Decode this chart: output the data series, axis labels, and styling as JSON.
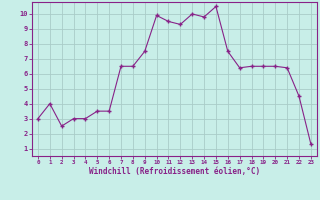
{
  "x": [
    0,
    1,
    2,
    3,
    4,
    5,
    6,
    7,
    8,
    9,
    10,
    11,
    12,
    13,
    14,
    15,
    16,
    17,
    18,
    19,
    20,
    21,
    22,
    23
  ],
  "y": [
    3,
    4,
    2.5,
    3,
    3,
    3.5,
    3.5,
    6.5,
    6.5,
    7.5,
    9.9,
    9.5,
    9.3,
    10,
    9.8,
    10.5,
    7.5,
    6.4,
    6.5,
    6.5,
    6.5,
    6.4,
    4.5,
    1.3
  ],
  "line_color": "#882288",
  "marker_color": "#882288",
  "bg_color": "#c8eee8",
  "grid_color": "#aaccc8",
  "xlabel": "Windchill (Refroidissement éolien,°C)",
  "xlim": [
    -0.5,
    23.5
  ],
  "ylim": [
    0.5,
    10.8
  ],
  "yticks": [
    1,
    2,
    3,
    4,
    5,
    6,
    7,
    8,
    9,
    10
  ],
  "xticks": [
    0,
    1,
    2,
    3,
    4,
    5,
    6,
    7,
    8,
    9,
    10,
    11,
    12,
    13,
    14,
    15,
    16,
    17,
    18,
    19,
    20,
    21,
    22,
    23
  ],
  "axis_color": "#882288",
  "font_family": "monospace"
}
